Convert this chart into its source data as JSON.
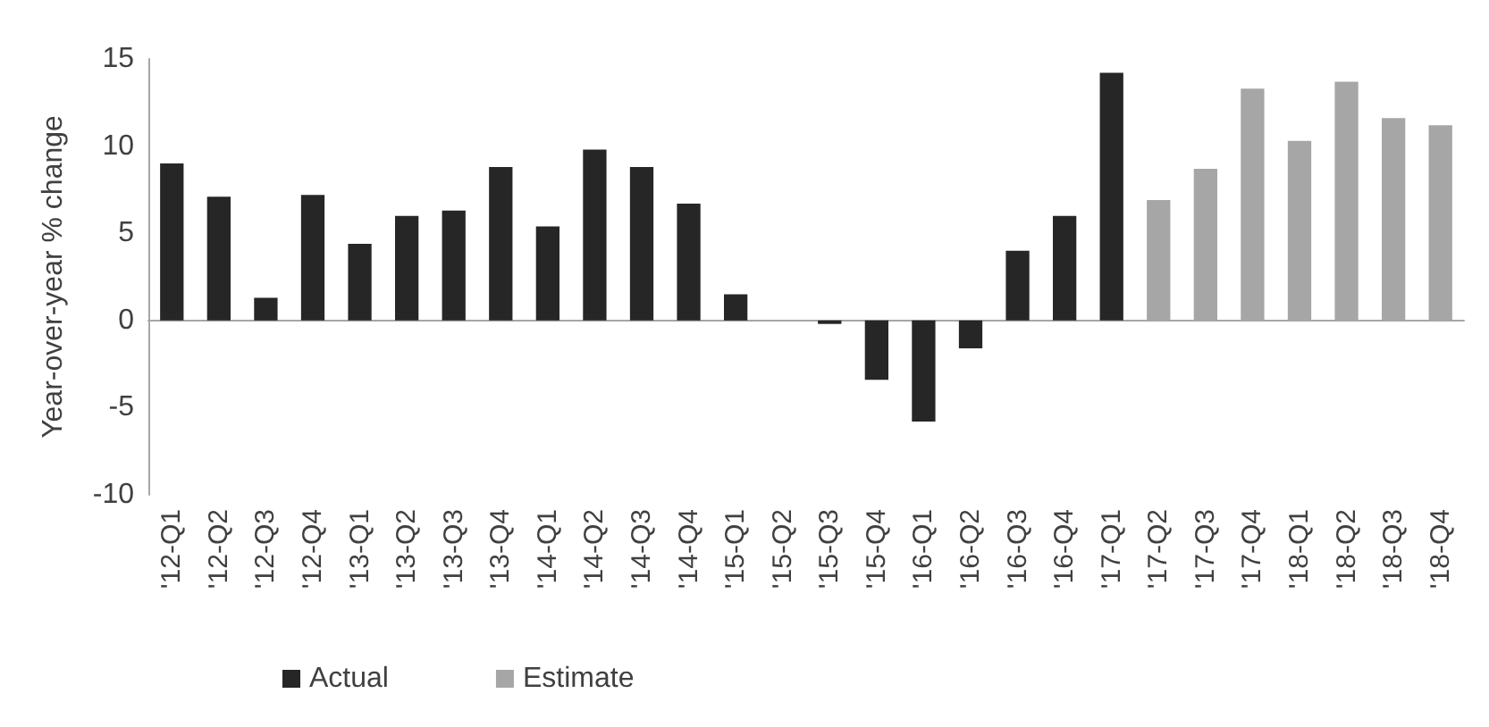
{
  "chart_data": {
    "type": "bar",
    "ylabel": "Year-over-year % change",
    "categories": [
      "'12-Q1",
      "'12-Q2",
      "'12-Q3",
      "'12-Q4",
      "'13-Q1",
      "'13-Q2",
      "'13-Q3",
      "'13-Q4",
      "'14-Q1",
      "'14-Q2",
      "'14-Q3",
      "'14-Q4",
      "'15-Q1",
      "'15-Q2",
      "'15-Q3",
      "'15-Q4",
      "'16-Q1",
      "'16-Q2",
      "'16-Q3",
      "'16-Q4",
      "'17-Q1",
      "'17-Q2",
      "'17-Q3",
      "'17-Q4",
      "'18-Q1",
      "'18-Q2",
      "'18-Q3",
      "'18-Q4"
    ],
    "series": [
      {
        "name": "Actual",
        "color": "#262626",
        "values": [
          9.0,
          7.1,
          1.3,
          7.2,
          4.4,
          6.0,
          6.3,
          8.8,
          5.4,
          9.8,
          8.8,
          6.7,
          1.5,
          0,
          -0.2,
          -3.4,
          -5.8,
          -1.6,
          4.0,
          6.0,
          14.2,
          null,
          null,
          null,
          null,
          null,
          null,
          null
        ]
      },
      {
        "name": "Estimate",
        "color": "#a6a6a6",
        "values": [
          null,
          null,
          null,
          null,
          null,
          null,
          null,
          null,
          null,
          null,
          null,
          null,
          null,
          null,
          null,
          null,
          null,
          null,
          null,
          null,
          null,
          6.9,
          8.7,
          13.3,
          10.3,
          13.7,
          11.6,
          11.2
        ]
      }
    ],
    "ylim": [
      -10,
      15
    ],
    "yticks": [
      -10,
      -5,
      0,
      5,
      10,
      15
    ],
    "legend": "bottom left"
  }
}
